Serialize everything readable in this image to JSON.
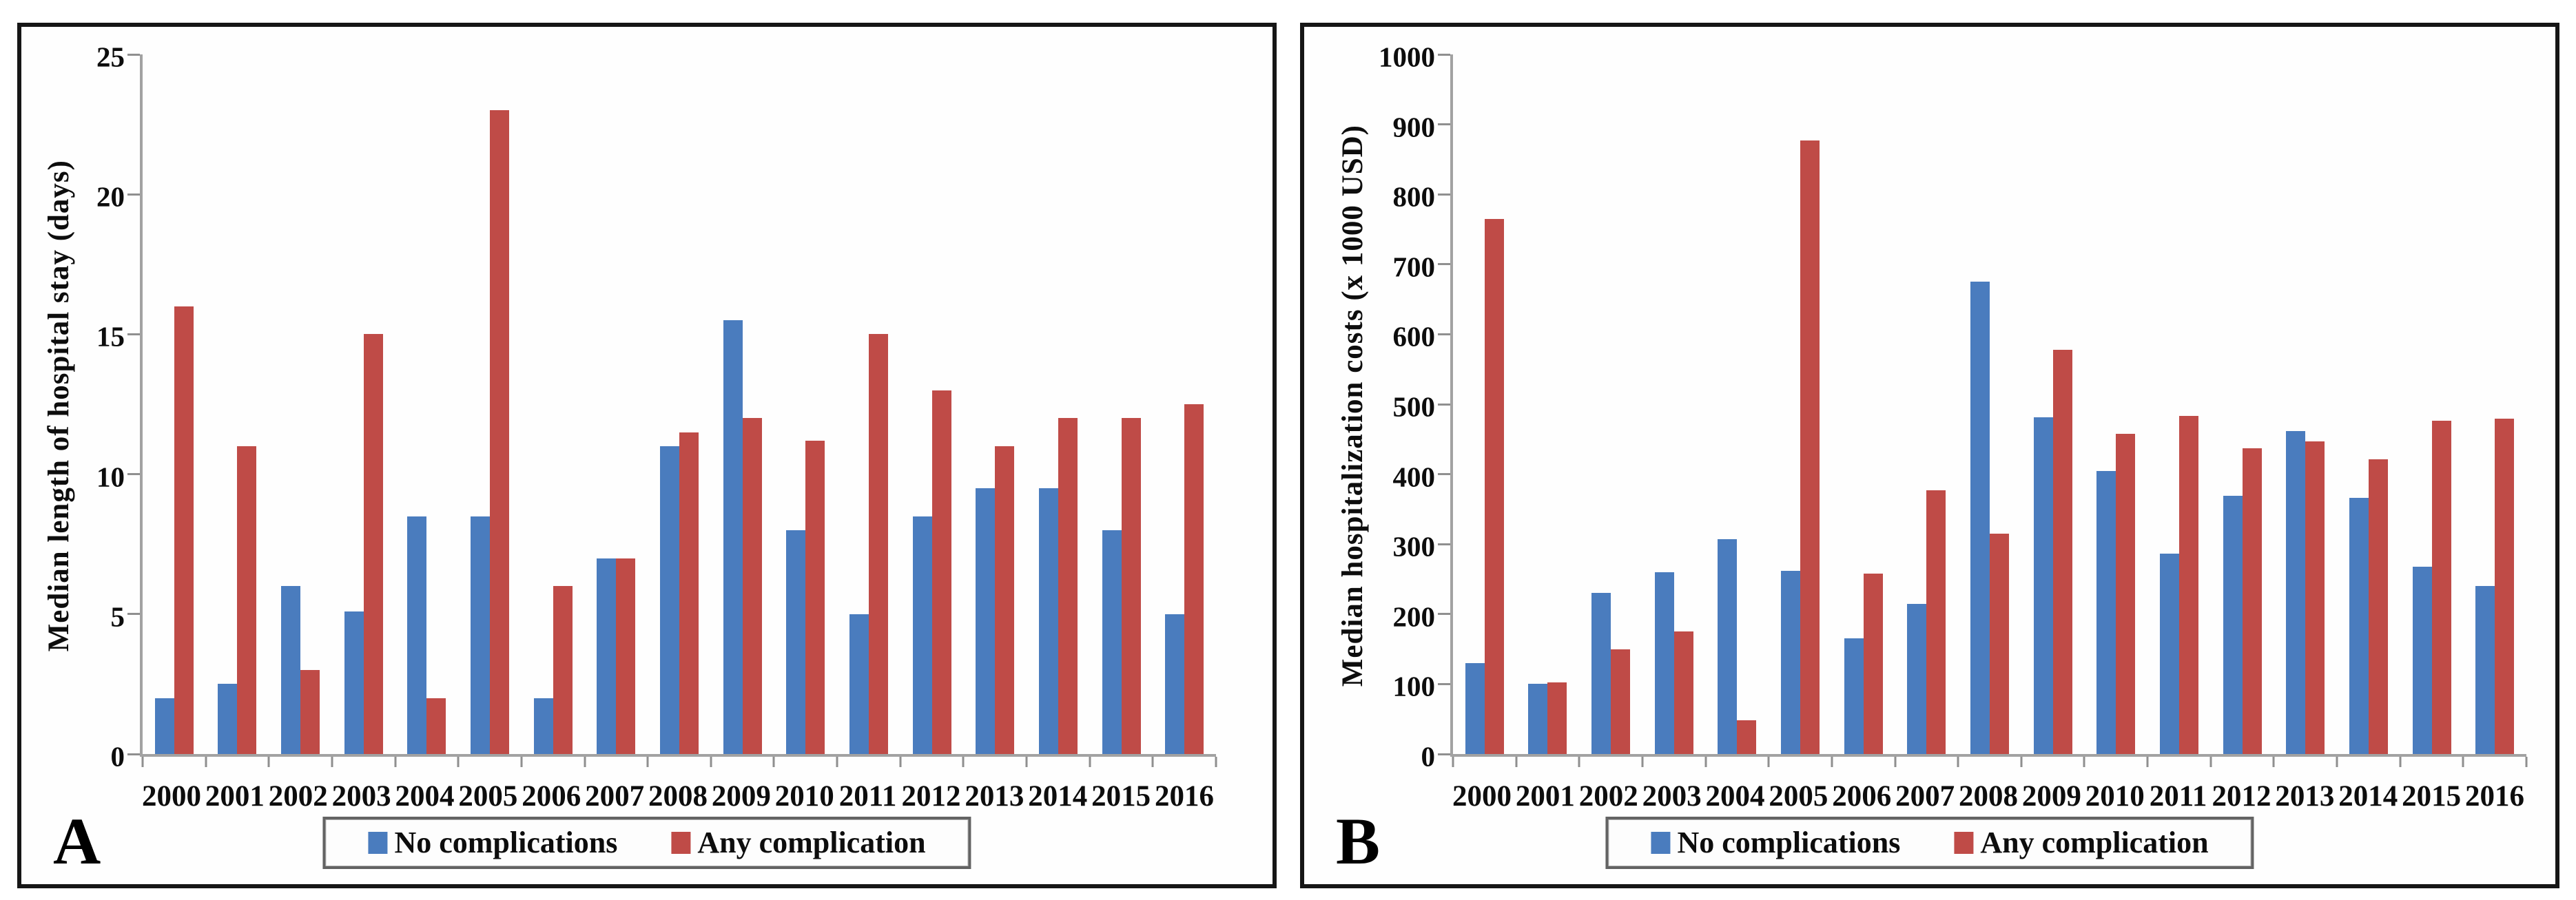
{
  "chart_data": [
    {
      "type": "bar",
      "panel_label": "A",
      "ylabel": "Median length of hospital stay (days)",
      "xlabel": "",
      "ylim": [
        0,
        25
      ],
      "yticks": [
        0,
        5,
        10,
        15,
        20,
        25
      ],
      "grid": false,
      "legend_position": "bottom",
      "categories": [
        "2000",
        "2001",
        "2002",
        "2003",
        "2004",
        "2005",
        "2006",
        "2007",
        "2008",
        "2009",
        "2010",
        "2011",
        "2012",
        "2013",
        "2014",
        "2015",
        "2016"
      ],
      "series": [
        {
          "name": "No complications",
          "color": "#4A7CBE",
          "values": [
            2,
            2.5,
            6,
            5.1,
            8.5,
            8.5,
            2,
            7,
            11,
            15.5,
            8,
            5,
            8.5,
            9.5,
            9.5,
            8,
            5
          ]
        },
        {
          "name": "Any complication",
          "color": "#BF4B47",
          "values": [
            16,
            11,
            3,
            15,
            2,
            23,
            6,
            7,
            11.5,
            12,
            11.2,
            15,
            13,
            11,
            12,
            12,
            12.5
          ]
        }
      ]
    },
    {
      "type": "bar",
      "panel_label": "B",
      "ylabel": "Median hospitalization costs (x 1000 USD)",
      "xlabel": "",
      "ylim": [
        0,
        1000
      ],
      "yticks": [
        0,
        100,
        200,
        300,
        400,
        500,
        600,
        700,
        800,
        900,
        1000
      ],
      "grid": false,
      "legend_position": "bottom",
      "categories": [
        "2000",
        "2001",
        "2002",
        "2003",
        "2004",
        "2005",
        "2006",
        "2007",
        "2008",
        "2009",
        "2010",
        "2011",
        "2012",
        "2013",
        "2014",
        "2015",
        "2016"
      ],
      "series": [
        {
          "name": "No complications",
          "color": "#4A7CBE",
          "values": [
            130,
            100,
            230,
            260,
            307,
            262,
            165,
            215,
            675,
            481,
            405,
            286,
            369,
            462,
            366,
            268,
            240
          ]
        },
        {
          "name": "Any complication",
          "color": "#BF4B47",
          "values": [
            765,
            102,
            150,
            175,
            48,
            877,
            258,
            377,
            315,
            578,
            458,
            483,
            437,
            447,
            421,
            476,
            479
          ]
        }
      ]
    }
  ]
}
